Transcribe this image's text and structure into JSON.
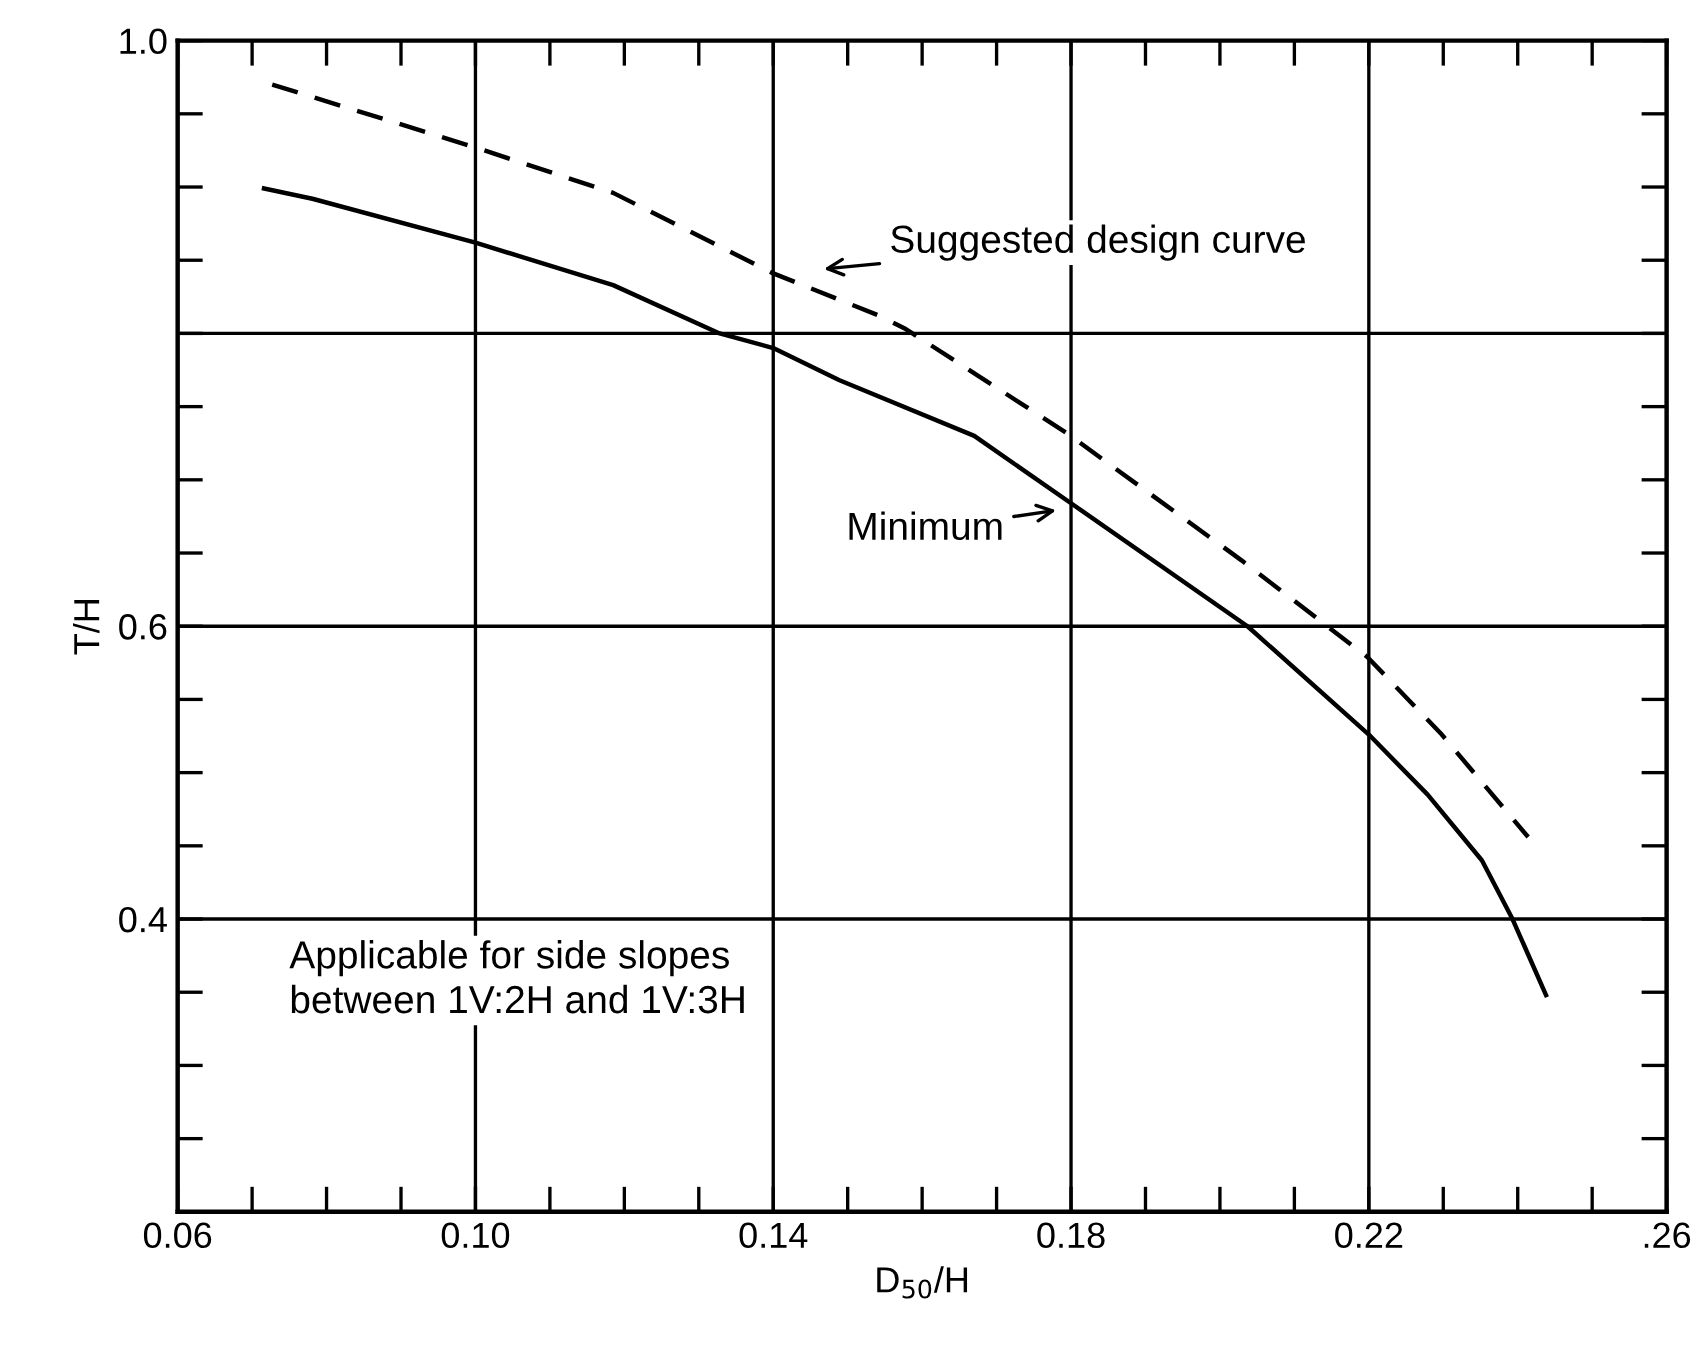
{
  "chart_data": {
    "type": "line",
    "xlabel": "D$_{50}$/H",
    "ylabel": "T/H",
    "xlim": [
      0.06,
      0.26
    ],
    "ylim": [
      0.2,
      1.0
    ],
    "xticks": [
      {
        "value": 0.06,
        "label": "0.06"
      },
      {
        "value": 0.07,
        "label": null
      },
      {
        "value": 0.08,
        "label": null
      },
      {
        "value": 0.09,
        "label": null
      },
      {
        "value": 0.1,
        "label": "0.10"
      },
      {
        "value": 0.11,
        "label": null
      },
      {
        "value": 0.12,
        "label": null
      },
      {
        "value": 0.13,
        "label": null
      },
      {
        "value": 0.14,
        "label": "0.14"
      },
      {
        "value": 0.15,
        "label": null
      },
      {
        "value": 0.16,
        "label": null
      },
      {
        "value": 0.17,
        "label": null
      },
      {
        "value": 0.18,
        "label": "0.18"
      },
      {
        "value": 0.19,
        "label": null
      },
      {
        "value": 0.2,
        "label": null
      },
      {
        "value": 0.21,
        "label": null
      },
      {
        "value": 0.22,
        "label": "0.22"
      },
      {
        "value": 0.23,
        "label": null
      },
      {
        "value": 0.24,
        "label": null
      },
      {
        "value": 0.25,
        "label": null
      },
      {
        "value": 0.26,
        "label": ".26"
      }
    ],
    "yticks": [
      {
        "value": 0.2,
        "label": null
      },
      {
        "value": 0.25,
        "label": null
      },
      {
        "value": 0.3,
        "label": null
      },
      {
        "value": 0.35,
        "label": null
      },
      {
        "value": 0.4,
        "label": "0.4"
      },
      {
        "value": 0.45,
        "label": null
      },
      {
        "value": 0.5,
        "label": null
      },
      {
        "value": 0.55,
        "label": null
      },
      {
        "value": 0.6,
        "label": "0.6"
      },
      {
        "value": 0.65,
        "label": null
      },
      {
        "value": 0.7,
        "label": null
      },
      {
        "value": 0.75,
        "label": null
      },
      {
        "value": 0.8,
        "label": null
      },
      {
        "value": 0.85,
        "label": null
      },
      {
        "value": 0.9,
        "label": null
      },
      {
        "value": 0.95,
        "label": null
      },
      {
        "value": 1.0,
        "label": "1.0"
      }
    ],
    "grid": true,
    "marker": "none",
    "series": [
      {
        "color": "#000000",
        "line_style": "solid",
        "x": [
          0.0716,
          0.0781,
          0.1,
          0.1185,
          0.1328,
          0.14,
          0.1489,
          0.167,
          0.18,
          0.2037,
          0.22,
          0.2279,
          0.2352,
          0.2393,
          0.2438
        ],
        "values": [
          0.899,
          0.892,
          0.862,
          0.833,
          0.8,
          0.79,
          0.768,
          0.73,
          0.684,
          0.6,
          0.526,
          0.485,
          0.44,
          0.4,
          0.348
        ]
      },
      {
        "color": "#000000",
        "line_style": "dashed",
        "x": [
          0.0727,
          0.1,
          0.1185,
          0.14,
          0.1543,
          0.1578,
          0.1794,
          0.2029,
          0.2198,
          0.2298,
          0.2414
        ],
        "values": [
          0.97,
          0.927,
          0.896,
          0.841,
          0.812,
          0.803,
          0.732,
          0.645,
          0.579,
          0.526,
          0.456
        ]
      }
    ],
    "annotations": [
      "Suggested design curve",
      "Minimum",
      "Applicable for side slopes\nbetween 1V:2H and 1V:3H"
    ]
  }
}
